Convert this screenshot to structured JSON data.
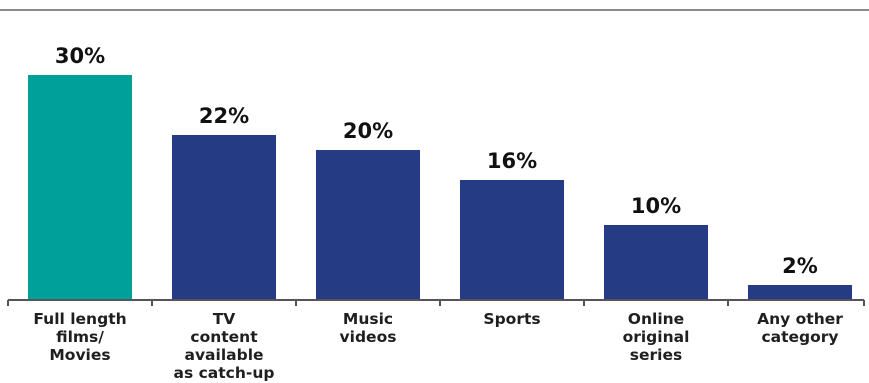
{
  "chart_data": {
    "type": "bar",
    "title": "",
    "xlabel": "",
    "ylabel": "",
    "ylim": [
      0,
      30
    ],
    "grid": false,
    "legend": "none",
    "categories": [
      [
        "Full length",
        "films/",
        "Movies"
      ],
      [
        "TV",
        "content",
        "available",
        "as catch-up"
      ],
      [
        "Music",
        "videos"
      ],
      [
        "Sports"
      ],
      [
        "Online",
        "original",
        "series"
      ],
      [
        "Any other",
        "category"
      ]
    ],
    "values": [
      30,
      22,
      20,
      16,
      10,
      2
    ],
    "value_labels": [
      "30%",
      "22%",
      "20%",
      "16%",
      "10%",
      "2%"
    ],
    "colors": [
      "#00a09a",
      "#253b84",
      "#253b84",
      "#253b84",
      "#253b84",
      "#253b84"
    ]
  },
  "colors": {
    "axis": "#555555",
    "highlight": "#00a09a",
    "primary": "#253b84"
  }
}
